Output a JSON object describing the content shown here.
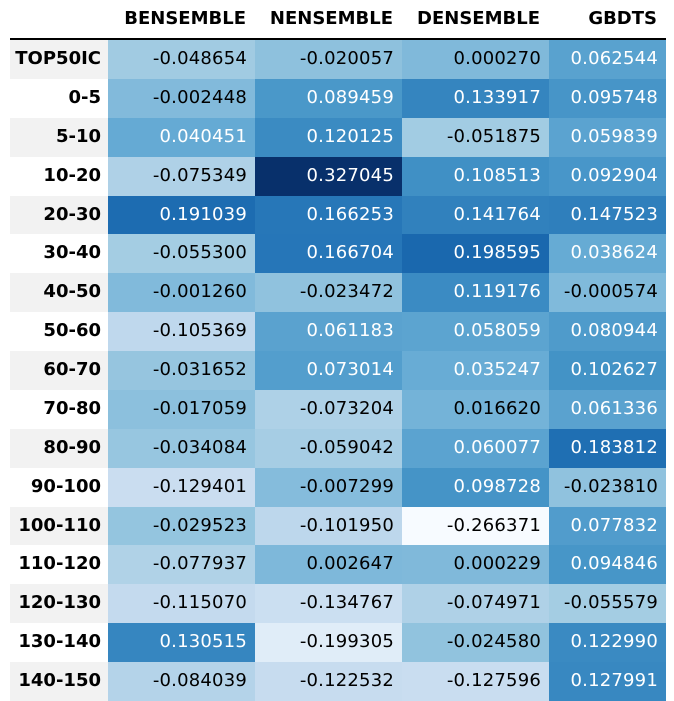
{
  "chart_data": {
    "type": "heatmap",
    "columns": [
      "BENSEMBLE",
      "NENSEMBLE",
      "DENSEMBLE",
      "GBDTS"
    ],
    "rows": [
      "TOP50IC",
      "0-5",
      "5-10",
      "10-20",
      "20-30",
      "30-40",
      "40-50",
      "50-60",
      "60-70",
      "70-80",
      "80-90",
      "90-100",
      "100-110",
      "110-120",
      "120-130",
      "130-140",
      "140-150"
    ],
    "values": [
      [
        "-0.048654",
        "-0.020057",
        "0.000270",
        "0.062544"
      ],
      [
        "-0.002448",
        "0.089459",
        "0.133917",
        "0.095748"
      ],
      [
        "0.040451",
        "0.120125",
        "-0.051875",
        "0.059839"
      ],
      [
        "-0.075349",
        "0.327045",
        "0.108513",
        "0.092904"
      ],
      [
        "0.191039",
        "0.166253",
        "0.141764",
        "0.147523"
      ],
      [
        "-0.055300",
        "0.166704",
        "0.198595",
        "0.038624"
      ],
      [
        "-0.001260",
        "-0.023472",
        "0.119176",
        "-0.000574"
      ],
      [
        "-0.105369",
        "0.061183",
        "0.058059",
        "0.080944"
      ],
      [
        "-0.031652",
        "0.073014",
        "0.035247",
        "0.102627"
      ],
      [
        "-0.017059",
        "-0.073204",
        "0.016620",
        "0.061336"
      ],
      [
        "-0.034084",
        "-0.059042",
        "0.060077",
        "0.183812"
      ],
      [
        "-0.129401",
        "-0.007299",
        "0.098728",
        "-0.023810"
      ],
      [
        "-0.029523",
        "-0.101950",
        "-0.266371",
        "0.077832"
      ],
      [
        "-0.077937",
        "0.002647",
        "0.000229",
        "0.094846"
      ],
      [
        "-0.115070",
        "-0.134767",
        "-0.074971",
        "-0.055579"
      ],
      [
        "0.130515",
        "-0.199305",
        "-0.024580",
        "0.122990"
      ],
      [
        "-0.084039",
        "-0.122532",
        "-0.127596",
        "0.127991"
      ]
    ],
    "colormap": "Blues",
    "color_range": [
      -0.266371,
      0.327045
    ],
    "legend": "none",
    "grid": false
  }
}
